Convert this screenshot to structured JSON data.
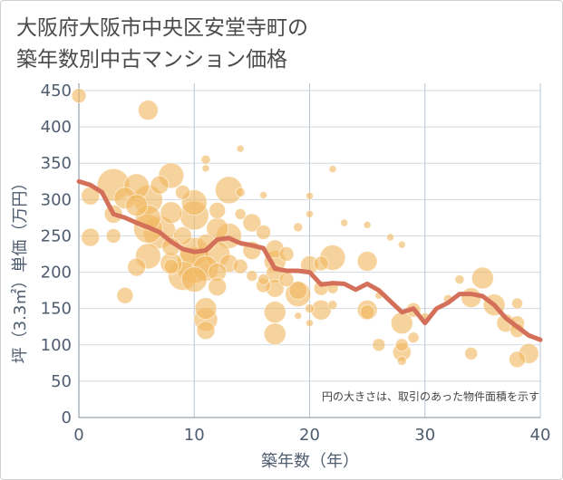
{
  "title_line1": "大阪府大阪市中央区安堂寺町の",
  "title_line2": "築年数別中古マンション価格",
  "chart_data": {
    "type": "scatter",
    "xlabel": "築年数（年）",
    "ylabel": "坪（3.3㎡）単価（万円）",
    "note": "円の大きさは、取引のあった物件面積を示す",
    "xlim": [
      0,
      40
    ],
    "ylim": [
      0,
      460
    ],
    "x_ticks": [
      0,
      10,
      20,
      30,
      40
    ],
    "y_ticks": [
      0,
      50,
      100,
      150,
      200,
      250,
      300,
      350,
      400,
      450
    ],
    "grid": true,
    "colors": {
      "bubble": "#f0b860",
      "line": "#d4705a",
      "grid": "#d2dae3",
      "vgrid": "#b9c6d4"
    },
    "bubbles": [
      [
        0,
        443,
        8
      ],
      [
        6,
        423,
        11
      ],
      [
        14,
        370,
        4
      ],
      [
        11,
        355,
        5
      ],
      [
        11,
        343,
        4
      ],
      [
        22,
        342,
        4
      ],
      [
        3,
        320,
        18
      ],
      [
        5,
        318,
        14
      ],
      [
        8,
        333,
        14
      ],
      [
        13,
        313,
        15
      ],
      [
        1,
        305,
        10
      ],
      [
        4,
        302,
        12
      ],
      [
        6,
        300,
        16
      ],
      [
        7,
        320,
        10
      ],
      [
        9,
        310,
        8
      ],
      [
        10,
        296,
        14
      ],
      [
        14,
        310,
        5
      ],
      [
        16,
        306,
        4
      ],
      [
        20,
        305,
        4
      ],
      [
        5,
        292,
        12
      ],
      [
        3,
        280,
        10
      ],
      [
        6,
        275,
        14
      ],
      [
        8,
        282,
        12
      ],
      [
        10,
        278,
        16
      ],
      [
        12,
        285,
        9
      ],
      [
        14,
        280,
        6
      ],
      [
        20,
        280,
        4
      ],
      [
        15,
        268,
        10
      ],
      [
        6,
        260,
        16
      ],
      [
        7,
        255,
        18
      ],
      [
        9,
        250,
        10
      ],
      [
        12,
        260,
        12
      ],
      [
        13,
        250,
        14
      ],
      [
        16,
        255,
        8
      ],
      [
        1,
        248,
        10
      ],
      [
        3,
        250,
        8
      ],
      [
        11,
        240,
        10
      ],
      [
        19,
        262,
        5
      ],
      [
        23,
        268,
        4
      ],
      [
        25,
        265,
        4
      ],
      [
        27,
        248,
        4
      ],
      [
        28,
        238,
        4
      ],
      [
        6,
        222,
        14
      ],
      [
        8,
        235,
        10
      ],
      [
        10,
        228,
        16
      ],
      [
        12,
        225,
        14
      ],
      [
        15,
        230,
        10
      ],
      [
        17,
        232,
        10
      ],
      [
        8,
        212,
        12
      ],
      [
        10,
        210,
        20
      ],
      [
        11,
        205,
        14
      ],
      [
        13,
        212,
        10
      ],
      [
        17,
        215,
        12
      ],
      [
        18,
        225,
        8
      ],
      [
        5,
        207,
        10
      ],
      [
        8,
        208,
        8
      ],
      [
        9,
        195,
        16
      ],
      [
        10,
        190,
        14
      ],
      [
        12,
        200,
        10
      ],
      [
        14,
        208,
        8
      ],
      [
        20,
        210,
        10
      ],
      [
        21,
        212,
        8
      ],
      [
        22,
        220,
        14
      ],
      [
        25,
        215,
        11
      ],
      [
        17,
        198,
        10
      ],
      [
        18,
        190,
        8
      ],
      [
        15,
        195,
        6
      ],
      [
        16,
        190,
        6
      ],
      [
        16,
        182,
        8
      ],
      [
        17,
        178,
        10
      ],
      [
        19,
        170,
        14
      ],
      [
        19,
        175,
        10
      ],
      [
        21,
        178,
        8
      ],
      [
        22,
        178,
        6
      ],
      [
        26,
        168,
        4
      ],
      [
        4,
        168,
        9
      ],
      [
        12,
        180,
        10
      ],
      [
        11,
        150,
        12
      ],
      [
        11,
        135,
        13
      ],
      [
        11,
        120,
        10
      ],
      [
        17,
        145,
        12
      ],
      [
        17,
        115,
        12
      ],
      [
        19,
        140,
        4
      ],
      [
        20,
        150,
        5
      ],
      [
        20,
        130,
        4
      ],
      [
        21,
        148,
        11
      ],
      [
        22,
        155,
        5
      ],
      [
        25,
        148,
        11
      ],
      [
        25,
        145,
        8
      ],
      [
        28,
        130,
        12
      ],
      [
        29,
        148,
        8
      ],
      [
        29,
        110,
        6
      ],
      [
        28,
        100,
        7
      ],
      [
        28,
        90,
        10
      ],
      [
        28,
        78,
        5
      ],
      [
        26,
        100,
        7
      ],
      [
        34,
        165,
        11
      ],
      [
        35,
        192,
        12
      ],
      [
        36,
        155,
        12
      ],
      [
        37,
        130,
        10
      ],
      [
        38,
        130,
        8
      ],
      [
        38,
        120,
        8
      ],
      [
        38,
        157,
        6
      ],
      [
        38,
        80,
        9
      ],
      [
        39,
        88,
        11
      ],
      [
        34,
        88,
        7
      ],
      [
        30,
        138,
        5
      ],
      [
        33,
        190,
        5
      ],
      [
        32,
        163,
        5
      ]
    ],
    "trend": {
      "x": [
        0,
        1,
        2,
        3,
        4,
        5,
        6,
        7,
        8,
        9,
        10,
        11,
        12,
        13,
        14,
        15,
        16,
        17,
        18,
        19,
        20,
        21,
        22,
        23,
        24,
        25,
        26,
        27,
        28,
        29,
        30,
        31,
        32,
        33,
        34,
        35,
        36,
        37,
        38,
        39,
        40
      ],
      "y": [
        325,
        320,
        310,
        280,
        275,
        268,
        262,
        255,
        242,
        232,
        228,
        230,
        245,
        247,
        240,
        237,
        233,
        205,
        202,
        202,
        200,
        183,
        185,
        184,
        176,
        184,
        175,
        160,
        145,
        150,
        130,
        150,
        158,
        170,
        170,
        167,
        155,
        137,
        125,
        113,
        107
      ]
    }
  }
}
